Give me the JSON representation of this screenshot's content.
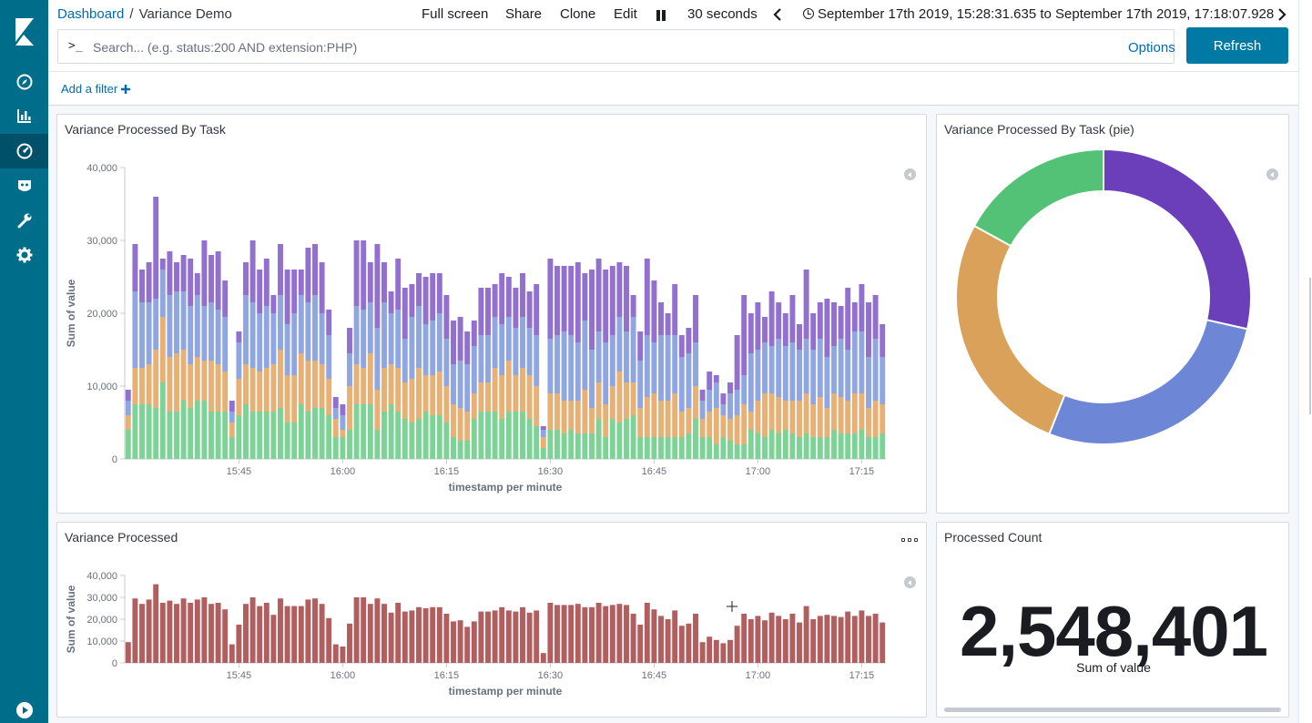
{
  "breadcrumb": {
    "root": "Dashboard",
    "separator": "/",
    "current": "Variance Demo"
  },
  "topnav": {
    "full_screen": "Full screen",
    "share": "Share",
    "clone": "Clone",
    "edit": "Edit",
    "refresh_interval": "30 seconds",
    "time_range": "September 17th 2019, 15:28:31.635 to September 17th 2019, 17:18:07.928"
  },
  "query": {
    "prompt": ">_",
    "placeholder": "Search... (e.g. status:200 AND extension:PHP)",
    "value": "",
    "options_label": "Options",
    "refresh_label": "Refresh"
  },
  "filters": {
    "add_label": "Add a filter"
  },
  "sidebar_icons": [
    "kibana-logo-icon",
    "compass-icon",
    "visualize-icon",
    "dashboard-icon",
    "ml-icon",
    "wrench-icon",
    "gear-icon",
    "play-icon"
  ],
  "colors": {
    "green": "#7dd396",
    "orange": "#e7b175",
    "blue": "#8fa6e0",
    "purple": "#9170d0",
    "red": "#b35e5e",
    "pie_purple": "#6a3fb9",
    "pie_blue": "#6e86d6",
    "pie_orange": "#d9a15a",
    "pie_green": "#54c276",
    "accent": "#006e8a"
  },
  "panels": {
    "stacked": {
      "title": "Variance Processed By Task"
    },
    "pie": {
      "title": "Variance Processed By Task (pie)"
    },
    "single": {
      "title": "Variance Processed"
    },
    "metric": {
      "title": "Processed Count",
      "value": "2,548,401",
      "label": "Sum of value"
    }
  },
  "chart_data": [
    {
      "type": "bar",
      "stacked": true,
      "title": "Variance Processed By Task",
      "xlabel": "timestamp per minute",
      "ylabel": "Sum of value",
      "ylim": [
        0,
        40000
      ],
      "yticks": [
        0,
        10000,
        20000,
        30000,
        40000
      ],
      "ytick_labels": [
        "0",
        "10,000",
        "20,000",
        "30,000",
        "40,000"
      ],
      "xticks": [
        {
          "label": "15:45",
          "index": 16
        },
        {
          "label": "16:00",
          "index": 31
        },
        {
          "label": "16:15",
          "index": 46
        },
        {
          "label": "16:30",
          "index": 61
        },
        {
          "label": "16:45",
          "index": 76
        },
        {
          "label": "17:00",
          "index": 91
        },
        {
          "label": "17:15",
          "index": 106
        }
      ],
      "bucket_count": 110,
      "series_colors": [
        "#7dd396",
        "#e7b175",
        "#8fa6e0",
        "#9170d0"
      ],
      "stacks": [
        [
          4000,
          2000,
          2000,
          1500
        ],
        [
          7500,
          5000,
          10500,
          6500
        ],
        [
          7500,
          5000,
          9000,
          4500
        ],
        [
          7500,
          5500,
          8500,
          5500
        ],
        [
          7000,
          8000,
          7000,
          14000
        ],
        [
          10500,
          9000,
          6500,
          1500
        ],
        [
          6500,
          7500,
          8500,
          6000
        ],
        [
          6500,
          8000,
          8500,
          4000
        ],
        [
          8000,
          7000,
          8000,
          5000
        ],
        [
          7000,
          6000,
          8000,
          6500
        ],
        [
          8000,
          6000,
          8500,
          3000
        ],
        [
          8000,
          5500,
          7500,
          9000
        ],
        [
          6500,
          7000,
          8000,
          6500
        ],
        [
          6500,
          6500,
          7500,
          8000
        ],
        [
          6500,
          5500,
          7500,
          5000
        ],
        [
          3000,
          2000,
          1500,
          1500
        ],
        [
          6000,
          5000,
          5000,
          1500
        ],
        [
          7500,
          5500,
          9500,
          4500
        ],
        [
          6500,
          6000,
          9000,
          8500
        ],
        [
          6500,
          5500,
          8000,
          6000
        ],
        [
          6500,
          6000,
          8500,
          6500
        ],
        [
          6500,
          6500,
          7000,
          2500
        ],
        [
          7000,
          8000,
          7500,
          7000
        ],
        [
          5000,
          6500,
          7000,
          7500
        ],
        [
          5000,
          6500,
          8500,
          6000
        ],
        [
          7500,
          7000,
          8000,
          3500
        ],
        [
          6500,
          7000,
          8000,
          7500
        ],
        [
          7000,
          6500,
          9000,
          7000
        ],
        [
          7000,
          6000,
          7000,
          7000
        ],
        [
          6000,
          5000,
          6000,
          3500
        ],
        [
          3000,
          2500,
          1500,
          1500
        ],
        [
          3000,
          1000,
          2000,
          1500
        ],
        [
          4000,
          6000,
          4500,
          3500
        ],
        [
          7500,
          5500,
          8000,
          9000
        ],
        [
          7500,
          5000,
          8000,
          9500
        ],
        [
          7500,
          7000,
          7000,
          5500
        ],
        [
          4000,
          5500,
          8500,
          11500
        ],
        [
          6500,
          6000,
          9000,
          5500
        ],
        [
          7500,
          5500,
          7000,
          3000
        ],
        [
          6500,
          6000,
          8000,
          7000
        ],
        [
          5500,
          5000,
          6000,
          7000
        ],
        [
          5000,
          6000,
          8500,
          4500
        ],
        [
          5500,
          7000,
          8500,
          4500
        ],
        [
          6500,
          5000,
          7000,
          6500
        ],
        [
          6000,
          5500,
          7500,
          6500
        ],
        [
          6000,
          6000,
          8000,
          5500
        ],
        [
          5000,
          5000,
          6500,
          6000
        ],
        [
          3000,
          4500,
          5500,
          6000
        ],
        [
          2500,
          4500,
          6500,
          6000
        ],
        [
          2500,
          4000,
          6500,
          4500
        ],
        [
          5500,
          3500,
          6500,
          3500
        ],
        [
          6500,
          4000,
          6500,
          6500
        ],
        [
          6500,
          4000,
          6500,
          6500
        ],
        [
          6500,
          6000,
          7000,
          4500
        ],
        [
          5500,
          6000,
          7000,
          7000
        ],
        [
          6500,
          7000,
          6000,
          5500
        ],
        [
          6500,
          5000,
          6500,
          5500
        ],
        [
          6500,
          6000,
          7000,
          6000
        ],
        [
          5500,
          6000,
          6500,
          5000
        ],
        [
          4500,
          5500,
          7000,
          7000
        ],
        [
          1500,
          1500,
          1000,
          500
        ],
        [
          4000,
          5000,
          7500,
          11000
        ],
        [
          4000,
          5000,
          8000,
          9500
        ],
        [
          3500,
          4500,
          9500,
          9000
        ],
        [
          4000,
          4000,
          9000,
          9500
        ],
        [
          3500,
          4500,
          8000,
          11000
        ],
        [
          3500,
          6000,
          9500,
          6500
        ],
        [
          3500,
          3500,
          8000,
          11000
        ],
        [
          5500,
          5000,
          7000,
          10000
        ],
        [
          3000,
          4500,
          8500,
          10000
        ],
        [
          5500,
          4500,
          7000,
          9500
        ],
        [
          5000,
          7000,
          7500,
          7500
        ],
        [
          5500,
          5000,
          7000,
          9000
        ],
        [
          6000,
          4500,
          9000,
          3000
        ],
        [
          3000,
          4000,
          6500,
          4000
        ],
        [
          3000,
          5500,
          8500,
          10500
        ],
        [
          3000,
          6000,
          7000,
          8500
        ],
        [
          3000,
          5000,
          9000,
          4500
        ],
        [
          3000,
          5000,
          9000,
          3000
        ],
        [
          3000,
          6000,
          8000,
          7000
        ],
        [
          3000,
          3500,
          7500,
          3000
        ],
        [
          3500,
          3500,
          7500,
          3500
        ],
        [
          5500,
          4500,
          6000,
          6500
        ],
        [
          3000,
          2500,
          2500,
          1500
        ],
        [
          3000,
          3500,
          3000,
          2500
        ],
        [
          2000,
          5000,
          3500,
          1000
        ],
        [
          3000,
          3000,
          1500,
          1500
        ],
        [
          2500,
          3000,
          3500,
          1500
        ],
        [
          2000,
          4000,
          3500,
          7500
        ],
        [
          2000,
          5500,
          4000,
          11000
        ],
        [
          4000,
          2500,
          8000,
          5500
        ],
        [
          3500,
          4500,
          7000,
          6500
        ],
        [
          3000,
          6000,
          7000,
          3500
        ],
        [
          4000,
          5000,
          6500,
          7500
        ],
        [
          3500,
          5000,
          8000,
          5000
        ],
        [
          4000,
          4000,
          7500,
          4500
        ],
        [
          3500,
          4500,
          8000,
          6500
        ],
        [
          3000,
          5000,
          7000,
          3500
        ],
        [
          3500,
          5500,
          7500,
          9500
        ],
        [
          3000,
          4500,
          7500,
          5000
        ],
        [
          3000,
          5500,
          8000,
          5000
        ],
        [
          3000,
          4000,
          7000,
          8000
        ],
        [
          4000,
          5000,
          6500,
          6000
        ],
        [
          3500,
          5000,
          8000,
          4500
        ],
        [
          3500,
          4500,
          7000,
          8500
        ],
        [
          3500,
          5500,
          8500,
          4000
        ],
        [
          4000,
          5000,
          8500,
          6500
        ],
        [
          3000,
          4000,
          7000,
          7500
        ],
        [
          3000,
          5000,
          8500,
          6000
        ],
        [
          3500,
          4000,
          6500,
          4500
        ]
      ]
    },
    {
      "type": "pie",
      "title": "Variance Processed By Task (pie)",
      "donut": true,
      "slices": [
        {
          "color": "#6a3fb9",
          "value": 28.5
        },
        {
          "color": "#6e86d6",
          "value": 27.5
        },
        {
          "color": "#d9a15a",
          "value": 27.0
        },
        {
          "color": "#54c276",
          "value": 17.0
        }
      ]
    },
    {
      "type": "bar",
      "title": "Variance Processed",
      "xlabel": "timestamp per minute",
      "ylabel": "Sum of value",
      "ylim": [
        0,
        40000
      ],
      "yticks": [
        0,
        10000,
        20000,
        30000,
        40000
      ],
      "ytick_labels": [
        "0",
        "10,000",
        "20,000",
        "30,000",
        "40,000"
      ],
      "xticks": [
        {
          "label": "15:45",
          "index": 16
        },
        {
          "label": "16:00",
          "index": 31
        },
        {
          "label": "16:15",
          "index": 46
        },
        {
          "label": "16:30",
          "index": 61
        },
        {
          "label": "16:45",
          "index": 76
        },
        {
          "label": "17:00",
          "index": 91
        },
        {
          "label": "17:15",
          "index": 106
        }
      ],
      "bucket_count": 110,
      "color": "#b35e5e",
      "values": [
        9500,
        29500,
        27000,
        29000,
        36000,
        27500,
        28500,
        27000,
        29500,
        27500,
        29000,
        30000,
        27000,
        27500,
        24500,
        8500,
        17500,
        27000,
        30000,
        26000,
        27500,
        22000,
        29500,
        26000,
        26000,
        26000,
        29000,
        29500,
        27000,
        20500,
        8500,
        7500,
        18000,
        30000,
        30000,
        27000,
        29500,
        27000,
        23000,
        27500,
        23500,
        24000,
        25500,
        25000,
        25500,
        25500,
        22500,
        19000,
        19500,
        16500,
        19000,
        23500,
        23500,
        24000,
        25500,
        24000,
        23500,
        25500,
        23000,
        24000,
        4500,
        27500,
        26500,
        26500,
        26500,
        27000,
        25500,
        25500,
        27500,
        26000,
        26500,
        27000,
        26500,
        22500,
        17500,
        27500,
        24500,
        21500,
        20000,
        24000,
        17000,
        18000,
        22500,
        9500,
        12000,
        10500,
        9000,
        10500,
        17000,
        22500,
        20000,
        21500,
        19500,
        23000,
        21500,
        20000,
        22500,
        18500,
        26000,
        20000,
        21500,
        22000,
        21500,
        21000,
        23500,
        21500,
        24000,
        21500,
        22500,
        18500
      ]
    }
  ]
}
